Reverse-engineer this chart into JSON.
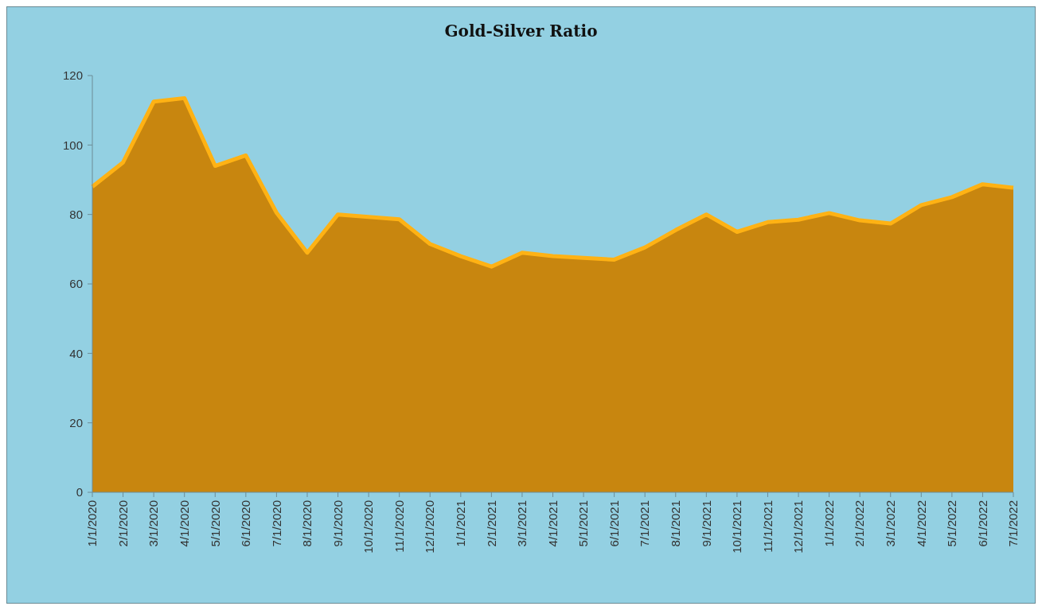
{
  "chart_data": {
    "type": "area",
    "title": "Gold-Silver Ratio",
    "categories": [
      "1/1/2020",
      "2/1/2020",
      "3/1/2020",
      "4/1/2020",
      "5/1/2020",
      "6/1/2020",
      "7/1/2020",
      "8/1/2020",
      "9/1/2020",
      "10/1/2020",
      "11/1/2020",
      "12/1/2020",
      "1/1/2021",
      "2/1/2021",
      "3/1/2021",
      "4/1/2021",
      "5/1/2021",
      "6/1/2021",
      "7/1/2021",
      "8/1/2021",
      "9/1/2021",
      "10/1/2021",
      "11/1/2021",
      "12/1/2021",
      "1/1/2022",
      "2/1/2022",
      "3/1/2022",
      "4/1/2022",
      "5/1/2022",
      "6/1/2022",
      "7/1/2022"
    ],
    "series": [
      {
        "color": "#c8860f",
        "values": [
          88,
          95,
          112.5,
          113.5,
          94,
          97,
          80.5,
          69,
          80,
          79.3,
          78.6,
          71.5,
          68,
          65,
          69,
          68,
          67.5,
          67,
          70.5,
          75.5,
          80,
          75,
          77.8,
          78.5,
          80.4,
          78.3,
          77.4,
          82.7,
          85,
          88.7,
          87.7
        ]
      }
    ],
    "ylim": [
      0,
      120
    ],
    "yticks": [
      0,
      20,
      40,
      60,
      80,
      100,
      120
    ],
    "grid": false
  }
}
